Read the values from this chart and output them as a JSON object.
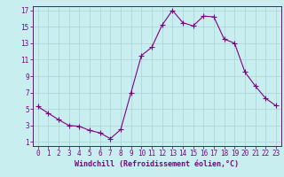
{
  "x": [
    0,
    1,
    2,
    3,
    4,
    5,
    6,
    7,
    8,
    9,
    10,
    11,
    12,
    13,
    14,
    15,
    16,
    17,
    18,
    19,
    20,
    21,
    22,
    23
  ],
  "y": [
    5.3,
    4.5,
    3.7,
    3.0,
    2.9,
    2.4,
    2.1,
    1.4,
    2.5,
    7.0,
    11.5,
    12.5,
    15.2,
    17.0,
    15.5,
    15.1,
    16.3,
    16.2,
    13.5,
    13.0,
    9.5,
    7.8,
    6.3,
    5.4
  ],
  "line_color": "#800080",
  "bg_color": "#c8eef0",
  "grid_color": "#aad4d8",
  "xlabel": "Windchill (Refroidissement éolien,°C)",
  "xlabel_color": "#800080",
  "tick_color": "#800080",
  "xlim": [
    -0.5,
    23.5
  ],
  "ylim": [
    0.5,
    17.5
  ],
  "yticks": [
    1,
    3,
    5,
    7,
    9,
    11,
    13,
    15,
    17
  ],
  "xticks": [
    0,
    1,
    2,
    3,
    4,
    5,
    6,
    7,
    8,
    9,
    10,
    11,
    12,
    13,
    14,
    15,
    16,
    17,
    18,
    19,
    20,
    21,
    22,
    23
  ],
  "marker": "+",
  "marker_size": 4,
  "line_width": 0.8,
  "tick_fontsize": 5.5,
  "xlabel_fontsize": 6.0
}
